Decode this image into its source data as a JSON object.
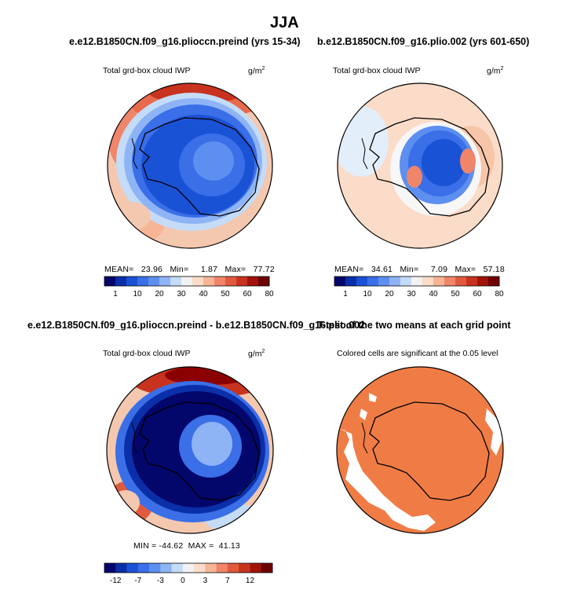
{
  "figure": {
    "title": "JJA",
    "panels": [
      {
        "case": "e.e12.B1850CN.f09_g16.plioccn.preind (yrs 15-34)",
        "variable": "Total grd-box cloud IWP",
        "units": "g/m",
        "units_exp": "2",
        "stats": "MEAN=   23.96   Min=     1.87   Max=   77.72",
        "colorbar": {
          "colors": [
            "#03066b",
            "#0a2fa8",
            "#1a52d6",
            "#3a6fe8",
            "#5d8ff0",
            "#8fb4f5",
            "#c4dcf8",
            "#f2f2f2",
            "#fbdcc8",
            "#f7b595",
            "#f0856a",
            "#e15a3e",
            "#c8331f",
            "#a11309",
            "#6e0000"
          ],
          "labels": [
            "1",
            "10",
            "20",
            "30",
            "40",
            "50",
            "60",
            "80"
          ]
        },
        "map": {
          "field": "mean"
        }
      },
      {
        "case": "b.e12.B1850CN.f09_g16.plio.002 (yrs 601-650)",
        "variable": "Total grd-box cloud IWP",
        "units": "g/m",
        "units_exp": "2",
        "stats": "MEAN=   34.61   Min=     7.09   Max=   57.18",
        "colorbar": {
          "colors": [
            "#03066b",
            "#0a2fa8",
            "#1a52d6",
            "#3a6fe8",
            "#5d8ff0",
            "#8fb4f5",
            "#c4dcf8",
            "#f2f2f2",
            "#fbdcc8",
            "#f7b595",
            "#f0856a",
            "#e15a3e",
            "#c8331f",
            "#a11309",
            "#6e0000"
          ],
          "labels": [
            "1",
            "10",
            "20",
            "30",
            "40",
            "50",
            "60",
            "80"
          ]
        },
        "map": {
          "field": "mean"
        }
      },
      {
        "case": "e.e12.B1850CN.f09_g16.plioccn.preind - b.e12.B1850CN.f09_g16.plio.002",
        "variable": "Total grd-box cloud IWP",
        "units": "g/m",
        "units_exp": "2",
        "stats": "MIN = -44.62  MAX =  41.13",
        "colorbar": {
          "colors": [
            "#03066b",
            "#0a2fa8",
            "#1a52d6",
            "#3a6fe8",
            "#5d8ff0",
            "#8fb4f5",
            "#c4dcf8",
            "#f2f2f2",
            "#fbdcc8",
            "#f7b595",
            "#f0856a",
            "#e15a3e",
            "#c8331f",
            "#a11309",
            "#6e0000"
          ],
          "labels": [
            "-12",
            "-7",
            "-3",
            "0",
            "3",
            "7",
            "12"
          ]
        },
        "map": {
          "field": "difference"
        }
      },
      {
        "case": "T-test of the two means at each grid point",
        "subtitle": "Colored cells are significant at the 0.05 level",
        "map": {
          "field": "significance",
          "fill": "#f07c45"
        }
      }
    ],
    "colors": {
      "land_outline": "#000000",
      "significant_fill": "#f07c45"
    }
  }
}
